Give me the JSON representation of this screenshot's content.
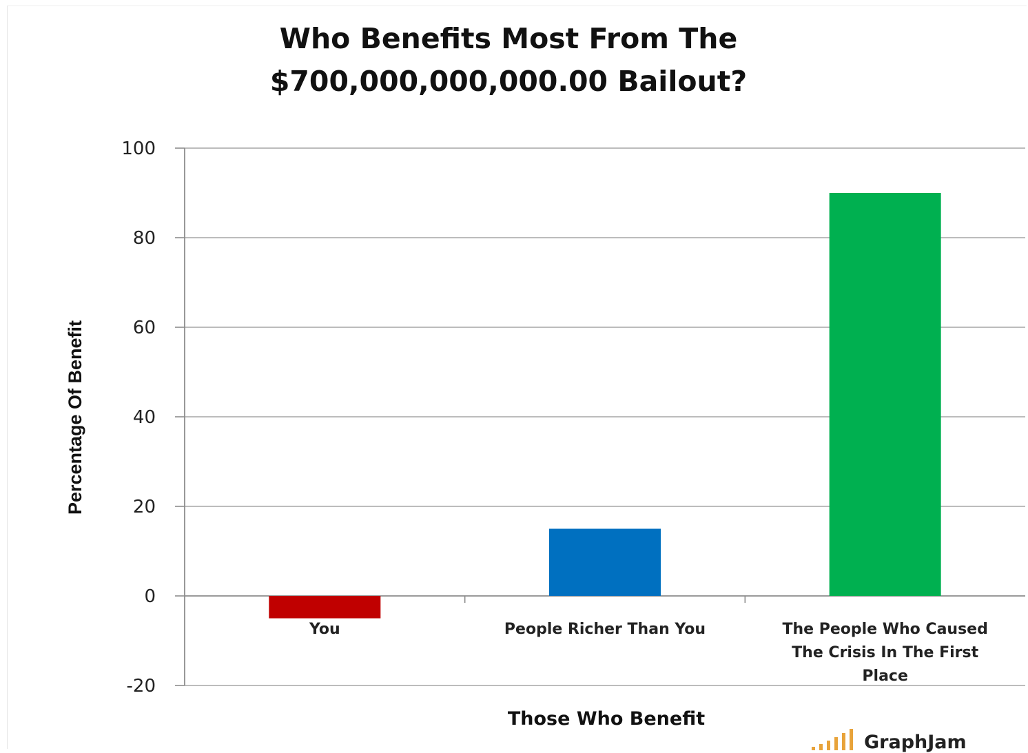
{
  "chart_data": {
    "type": "bar",
    "title": [
      "Who Benefits Most From The",
      "$700,000,000,000.00  Bailout?"
    ],
    "xlabel": "Those Who Benefit",
    "ylabel": "Percentage Of Benefit",
    "ylim": [
      -20,
      100
    ],
    "yticks": [
      "100",
      "80",
      "60",
      "40",
      "20",
      "0",
      "-20"
    ],
    "ytick_values": [
      100,
      80,
      60,
      40,
      20,
      0,
      -20
    ],
    "grid": true,
    "categories": [
      [
        "You"
      ],
      [
        "People Richer  Than  You"
      ],
      [
        "The People  Who Caused",
        "The Crisis In The  First",
        "Place"
      ]
    ],
    "values": [
      -5,
      15,
      90
    ],
    "colors": [
      "#c00000",
      "#0070c0",
      "#00b050"
    ]
  },
  "watermark": {
    "text": "GraphJam",
    "bar_color": "#e8a33a"
  }
}
